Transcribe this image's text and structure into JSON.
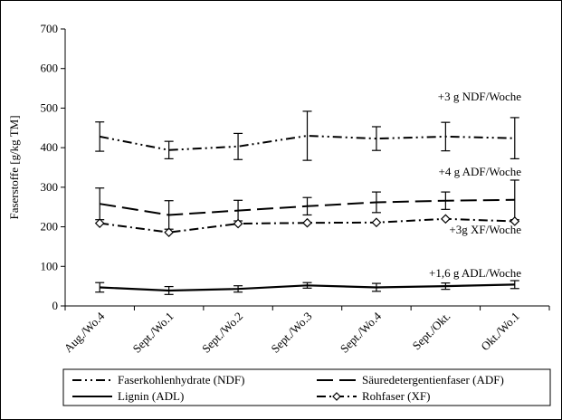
{
  "chart_data": {
    "type": "line",
    "title": "",
    "xlabel": "",
    "ylabel": "Faserstoffe [g/kg TM]",
    "ylim": [
      0,
      700
    ],
    "yticks": [
      "0",
      "100",
      "200",
      "300",
      "400",
      "500",
      "600",
      "700"
    ],
    "categories": [
      "Aug./Wo.4",
      "Sept./Wo.1",
      "Sept./Wo.2",
      "Sept./Wo.3",
      "Sept./Wo.4",
      "Sept./Okt.",
      "Okt./Wo.1"
    ],
    "grid": false,
    "legend_position": "bottom",
    "series": [
      {
        "name": "Faserkohlenhydrate (NDF)",
        "style": "dash-dot-dot",
        "color": "#000000",
        "marker": "none",
        "values": [
          428,
          394,
          403,
          430,
          423,
          428,
          424
        ],
        "err": [
          37,
          22,
          33,
          62,
          30,
          36,
          52
        ]
      },
      {
        "name": "Säuredetergentienfaser (ADF)",
        "style": "long-dash",
        "color": "#000000",
        "marker": "none",
        "values": [
          258,
          230,
          241,
          252,
          262,
          266,
          268
        ],
        "err": [
          40,
          36,
          26,
          22,
          26,
          22,
          50
        ]
      },
      {
        "name": "Lignin (ADL)",
        "style": "solid",
        "color": "#000000",
        "marker": "none",
        "values": [
          47,
          39,
          43,
          52,
          47,
          50,
          54
        ],
        "err": [
          12,
          10,
          8,
          7,
          10,
          8,
          10
        ]
      },
      {
        "name": "Rohfaser (XF)",
        "style": "dash-dot",
        "color": "#000000",
        "marker": "diamond",
        "values": [
          209,
          186,
          208,
          210,
          211,
          220,
          214
        ],
        "err": [
          0,
          0,
          0,
          0,
          0,
          0,
          0
        ]
      }
    ],
    "annotations": [
      "+3 g NDF/Woche",
      "+4 g ADF/Woche",
      "+3g XF/Woche",
      "+1,6 g ADL/Woche"
    ]
  }
}
